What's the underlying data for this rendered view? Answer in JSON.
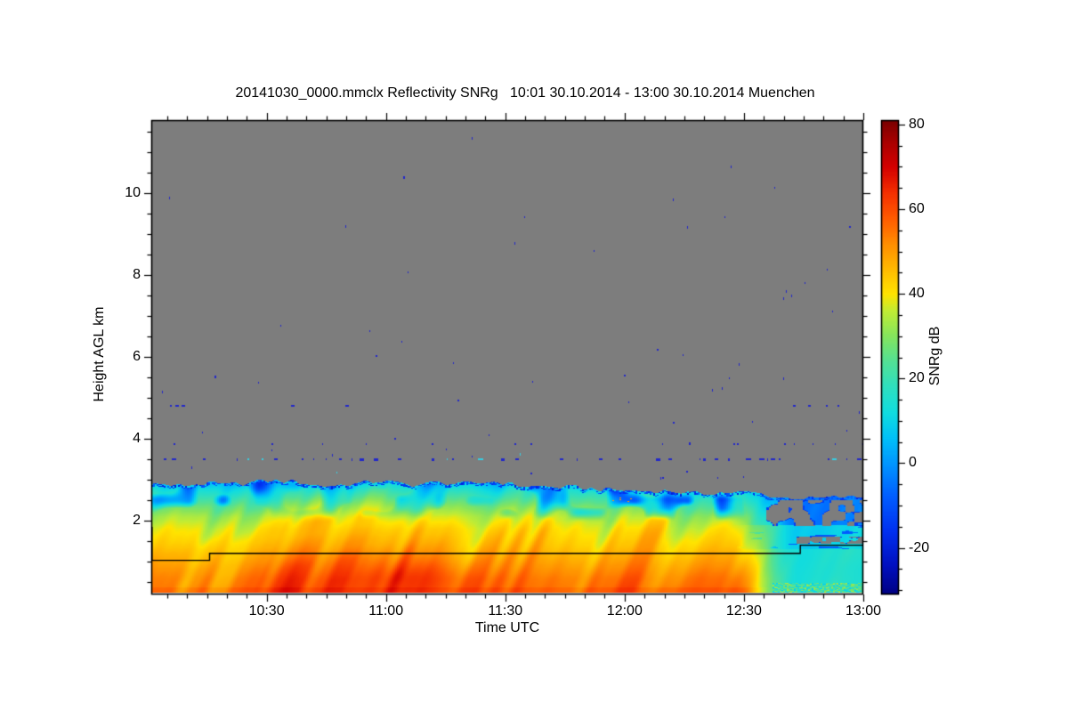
{
  "figure": {
    "title": "20141030_0000.mmclx Reflectivity SNRg   10:01 30.10.2014 - 13:00 30.10.2014 Muenchen",
    "background_color": "#ffffff",
    "nodata_color": "#7d7d7d",
    "frame_color": "#000000"
  },
  "axes": {
    "x": {
      "label": "Time UTC",
      "start_minutes_after_1000": 1,
      "end_minutes_after_1000": 180,
      "major_ticks": [
        {
          "m": 30,
          "t": "10:30"
        },
        {
          "m": 60,
          "t": "11:00"
        },
        {
          "m": 90,
          "t": "11:30"
        },
        {
          "m": 120,
          "t": "12:00"
        },
        {
          "m": 150,
          "t": "12:30"
        },
        {
          "m": 180,
          "t": "13:00"
        }
      ],
      "minor_step_min": 5
    },
    "y": {
      "label": "Height AGL km",
      "min_km": 0.196,
      "max_km": 11.78,
      "major_ticks": [
        {
          "km": 2,
          "t": "2"
        },
        {
          "km": 4,
          "t": "4"
        },
        {
          "km": 6,
          "t": "6"
        },
        {
          "km": 8,
          "t": "8"
        },
        {
          "km": 10,
          "t": "10"
        }
      ],
      "minor_step_km": 0.5
    }
  },
  "colorbar": {
    "label": "SNRg dB",
    "domain": [
      -31,
      81
    ],
    "major_ticks": [
      {
        "v": 80,
        "t": "80"
      },
      {
        "v": 60,
        "t": "60"
      },
      {
        "v": 40,
        "t": "40"
      },
      {
        "v": 20,
        "t": "20"
      },
      {
        "v": 0,
        "t": "0"
      },
      {
        "v": -20,
        "t": "-20"
      }
    ],
    "minor_step": 5,
    "stops": [
      [
        -31,
        "#000082"
      ],
      [
        -24,
        "#0010c0"
      ],
      [
        -16,
        "#0030f0"
      ],
      [
        -8,
        "#005cff"
      ],
      [
        0,
        "#0096ff"
      ],
      [
        6,
        "#00c0f8"
      ],
      [
        12,
        "#10dce0"
      ],
      [
        18,
        "#2edfc0"
      ],
      [
        24,
        "#52e096"
      ],
      [
        30,
        "#84e45e"
      ],
      [
        36,
        "#c0ec34"
      ],
      [
        40,
        "#ffe400"
      ],
      [
        46,
        "#ffb900"
      ],
      [
        52,
        "#ff8c00"
      ],
      [
        58,
        "#ff5a00"
      ],
      [
        64,
        "#f42e00"
      ],
      [
        70,
        "#d40000"
      ],
      [
        76,
        "#a80000"
      ],
      [
        81,
        "#7a0000"
      ]
    ]
  },
  "chart_data": {
    "type": "heatmap",
    "title": "20141030_0000.mmclx Reflectivity SNRg   10:01 30.10.2014 - 13:00 30.10.2014 Muenchen",
    "quantity": "Reflectivity SNRg",
    "station": "Muenchen",
    "time_start": "10:01 30.10.2014",
    "time_end": "13:00 30.10.2014",
    "xlabel": "Time UTC",
    "ylabel": "Height AGL km",
    "zlabel": "SNRg dB",
    "x_tick_labels": [
      "10:30",
      "11:00",
      "11:30",
      "12:00",
      "12:30",
      "13:00"
    ],
    "y_ticks_km": [
      2,
      4,
      6,
      8,
      10
    ],
    "z_ticks_db": [
      -20,
      0,
      20,
      40,
      60,
      80
    ],
    "x_range_minutes_after_1000": [
      1,
      180
    ],
    "y_range_km": [
      0.196,
      11.78
    ],
    "z_range_db": [
      -31,
      81
    ],
    "no_signal": "gray background above cloud/boundary-layer top",
    "mean_profile": {
      "height_km": [
        0.25,
        0.6,
        1.0,
        1.4,
        1.8,
        2.1,
        2.35,
        2.55,
        2.72,
        2.88,
        3.0
      ],
      "snrg_db": [
        57,
        55,
        50,
        45,
        41,
        36,
        29,
        22,
        16,
        9,
        5
      ]
    },
    "cloud_top_km": {
      "minutes_after_1000": [
        1,
        10,
        20,
        30,
        40,
        50,
        60,
        70,
        80,
        90,
        100,
        110,
        120,
        130,
        140,
        150,
        160,
        170,
        180
      ],
      "km": [
        2.92,
        2.88,
        2.86,
        2.95,
        2.92,
        2.88,
        2.94,
        2.9,
        2.94,
        2.91,
        2.86,
        2.8,
        2.76,
        2.73,
        2.7,
        2.66,
        2.6,
        2.56,
        2.55
      ]
    },
    "boundary_line": {
      "description": "thin black step line overlay",
      "points_min_km": [
        [
          1,
          1.85
        ],
        [
          1,
          1.03
        ],
        [
          15.5,
          1.03
        ],
        [
          15.5,
          1.2
        ],
        [
          164,
          1.2
        ],
        [
          164,
          1.4
        ],
        [
          180,
          1.4
        ]
      ]
    },
    "clutter_dash_line_km": 3.5,
    "features": [
      "SNRg near 55-60 dB (orange/red) close to the surface, decreasing with height",
      "yellow/orange fall-streak texture through the boundary layer up to ~2 km",
      "green-cyan band 2.2-2.9 km with dark blue low-SNR patches near cloud top",
      "cloud top ~2.9 km until ~11:40, sinking to ~2.55 km by 13:00",
      "horizontal dashed blue clutter line at 3.5 km across the whole record",
      "sparse blue noise speckles scattered over the gray no-signal region",
      "after ~12:30 low-level signal weakens to cyan with gray/blue gaps 1.9-2.5 km"
    ],
    "render": {
      "seed": 7,
      "gray_rgb": [
        125,
        125,
        125
      ],
      "speckle_blue": "#2127cb",
      "speckle_cyan": "#35cfe4",
      "orange_fleck": "#ff9800",
      "first_gate_km": 0.25,
      "regime_change_minutes": [
        146,
        164
      ]
    }
  }
}
